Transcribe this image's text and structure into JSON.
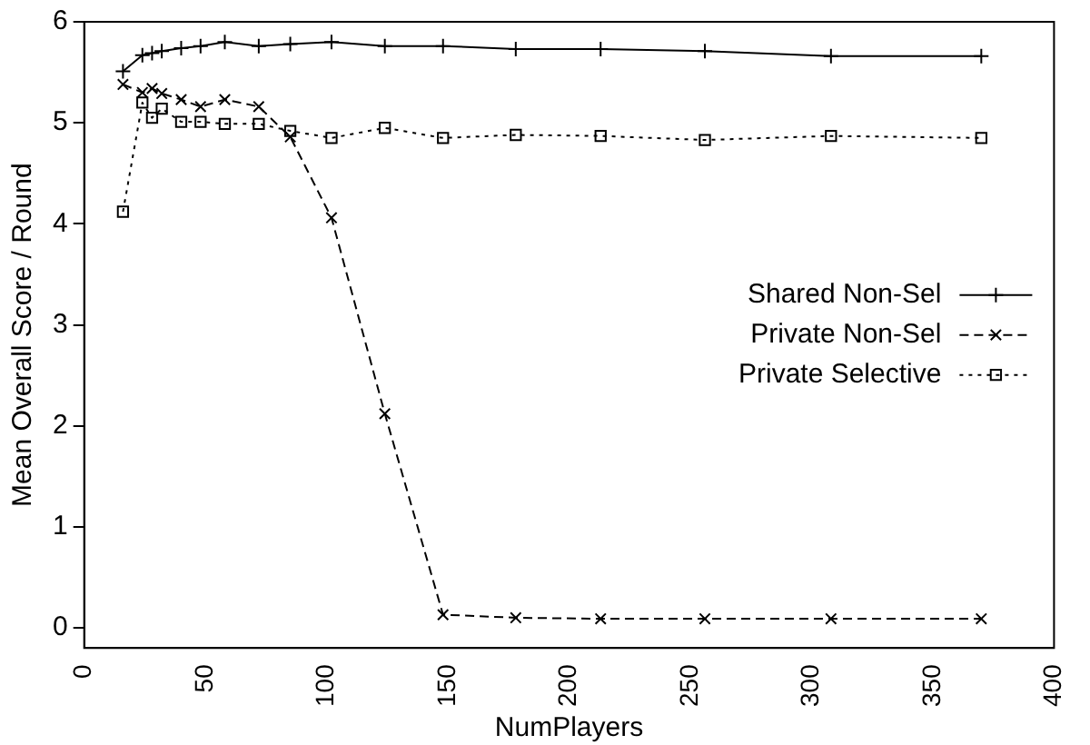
{
  "chart_data": {
    "type": "line",
    "xlabel": "NumPlayers",
    "ylabel": "Mean Overall Score / Round",
    "x": [
      16,
      24,
      28,
      32,
      40,
      48,
      58,
      72,
      85,
      102,
      124,
      148,
      178,
      213,
      256,
      308,
      370
    ],
    "series": [
      {
        "name": "Shared Non-Sel",
        "color": "#000000",
        "marker": "plus",
        "line_style": "solid",
        "values": [
          5.51,
          5.67,
          5.69,
          5.71,
          5.74,
          5.76,
          5.8,
          5.76,
          5.78,
          5.8,
          5.76,
          5.76,
          5.73,
          5.73,
          5.71,
          5.66,
          5.66
        ]
      },
      {
        "name": "Private Non-Sel",
        "color": "#000000",
        "marker": "cross",
        "line_style": "dashed",
        "values": [
          5.38,
          5.3,
          5.34,
          5.29,
          5.23,
          5.16,
          5.23,
          5.16,
          4.86,
          4.06,
          2.12,
          0.13,
          0.1,
          0.09,
          0.09,
          0.09,
          0.09
        ]
      },
      {
        "name": "Private Selective",
        "color": "#000000",
        "marker": "square",
        "line_style": "dotted",
        "values": [
          4.12,
          5.2,
          5.05,
          5.14,
          5.01,
          5.01,
          4.99,
          4.99,
          4.92,
          4.85,
          4.95,
          4.85,
          4.88,
          4.87,
          4.83,
          4.87,
          4.85
        ]
      }
    ],
    "xlim": [
      0,
      400
    ],
    "xticks": [
      0,
      50,
      100,
      150,
      200,
      250,
      300,
      350,
      400
    ],
    "ylim": [
      -0.2,
      6
    ],
    "yticks": [
      0,
      1,
      2,
      3,
      4,
      5,
      6
    ],
    "grid": false,
    "legend": "right"
  }
}
